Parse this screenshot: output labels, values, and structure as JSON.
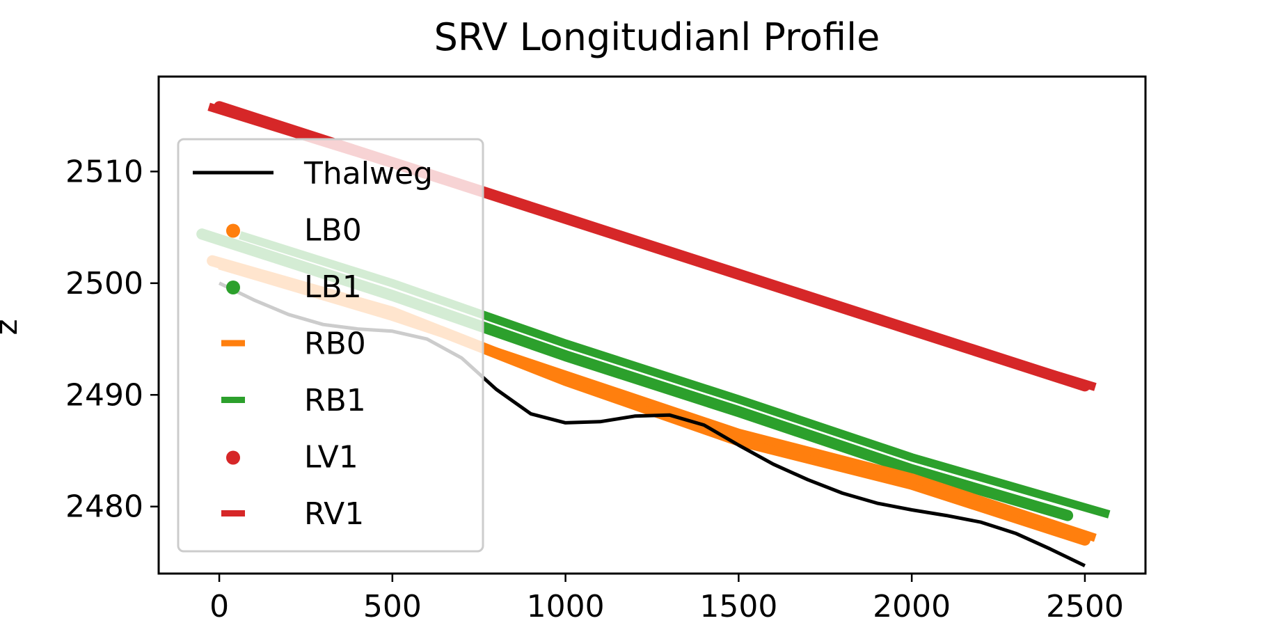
{
  "chart_data": {
    "type": "line",
    "title": "SRV Longitudianl Profile",
    "xlabel": "",
    "ylabel": "z",
    "xlim": [
      -175,
      2675
    ],
    "ylim": [
      2474.0,
      2518.5
    ],
    "xticks": [
      0,
      500,
      1000,
      1500,
      2000,
      2500
    ],
    "yticks": [
      2480,
      2490,
      2500,
      2510
    ],
    "grid": false,
    "legend_position": "upper-left",
    "series": [
      {
        "name": "Thalweg",
        "style": "line",
        "color": "#000000",
        "x": [
          0,
          100,
          200,
          300,
          400,
          500,
          600,
          700,
          800,
          900,
          1000,
          1100,
          1200,
          1300,
          1400,
          1500,
          1600,
          1700,
          1800,
          1900,
          2000,
          2100,
          2200,
          2300,
          2400,
          2500
        ],
        "y": [
          2500.0,
          2498.5,
          2497.2,
          2496.3,
          2495.9,
          2495.7,
          2495.0,
          2493.3,
          2490.5,
          2488.3,
          2487.5,
          2487.6,
          2488.1,
          2488.2,
          2487.3,
          2485.5,
          2483.8,
          2482.4,
          2481.2,
          2480.3,
          2479.7,
          2479.2,
          2478.6,
          2477.6,
          2476.2,
          2474.7
        ]
      },
      {
        "name": "LB0",
        "style": "points",
        "color": "#ff7f0e",
        "x": [
          -20,
          500,
          1000,
          1500,
          2000,
          2500
        ],
        "y": [
          2502.0,
          2497.4,
          2491.3,
          2485.9,
          2482.0,
          2477.0
        ]
      },
      {
        "name": "LB1",
        "style": "points",
        "color": "#2ca02c",
        "x": [
          -50,
          500,
          1000,
          1500,
          2000,
          2450
        ],
        "y": [
          2504.4,
          2498.9,
          2493.5,
          2488.5,
          2483.3,
          2479.2
        ]
      },
      {
        "name": "RB0",
        "style": "dash",
        "color": "#ff7f0e",
        "x": [
          0,
          500,
          1000,
          1500,
          2000,
          2530
        ],
        "y": [
          2501.6,
          2497.0,
          2491.8,
          2486.6,
          2482.6,
          2477.2
        ]
      },
      {
        "name": "RB1",
        "style": "dash",
        "color": "#2ca02c",
        "x": [
          60,
          500,
          1000,
          1500,
          2000,
          2570
        ],
        "y": [
          2504.3,
          2500.0,
          2494.6,
          2489.6,
          2484.4,
          2479.3
        ]
      },
      {
        "name": "LV1",
        "style": "points",
        "color": "#d62728",
        "x": [
          0,
          500,
          1000,
          1500,
          2000,
          2500
        ],
        "y": [
          2515.8,
          2510.8,
          2505.8,
          2500.8,
          2495.8,
          2490.8
        ]
      },
      {
        "name": "RV1",
        "style": "dash",
        "color": "#d62728",
        "x": [
          -30,
          500,
          1000,
          1500,
          2000,
          2530
        ],
        "y": [
          2515.8,
          2510.7,
          2505.7,
          2500.7,
          2495.7,
          2490.7
        ]
      }
    ]
  }
}
